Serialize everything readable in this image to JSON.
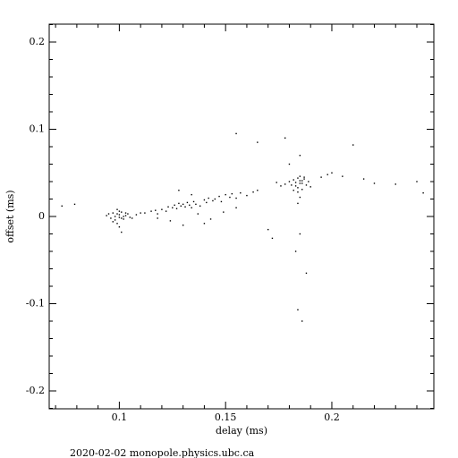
{
  "chart_data": {
    "type": "scatter",
    "xlabel": "delay (ms)",
    "ylabel": "offset (ms)",
    "footer": "2020-02-02  monopole.physics.ubc.ca",
    "color": "#000000",
    "xlim": [
      0.067,
      0.248
    ],
    "ylim": [
      -0.2205,
      0.2205
    ],
    "xticks": [
      0.1,
      0.15,
      0.2
    ],
    "yticks": [
      -0.2,
      -0.1,
      0,
      0.1,
      0.2
    ],
    "xminorticks": [
      0.07,
      0.08,
      0.09,
      0.11,
      0.12,
      0.13,
      0.14,
      0.16,
      0.17,
      0.18,
      0.19,
      0.21,
      0.22,
      0.23,
      0.24
    ],
    "yminorticks": [
      -0.22,
      -0.18,
      -0.16,
      -0.14,
      -0.12,
      -0.08,
      -0.06,
      -0.04,
      -0.02,
      0.02,
      0.04,
      0.06,
      0.08,
      0.12,
      0.14,
      0.16,
      0.18,
      0.22
    ],
    "x": [
      0.094,
      0.096,
      0.097,
      0.098,
      0.099,
      0.1,
      0.1,
      0.101,
      0.102,
      0.103,
      0.104,
      0.105,
      0.098,
      0.1,
      0.102,
      0.097,
      0.099,
      0.101,
      0.103,
      0.095,
      0.106,
      0.1,
      0.099,
      0.101,
      0.108,
      0.11,
      0.112,
      0.115,
      0.117,
      0.118,
      0.12,
      0.122,
      0.123,
      0.125,
      0.126,
      0.127,
      0.128,
      0.129,
      0.13,
      0.131,
      0.132,
      0.133,
      0.134,
      0.135,
      0.136,
      0.138,
      0.14,
      0.141,
      0.142,
      0.144,
      0.145,
      0.147,
      0.148,
      0.15,
      0.152,
      0.153,
      0.155,
      0.157,
      0.16,
      0.163,
      0.165,
      0.118,
      0.124,
      0.13,
      0.137,
      0.143,
      0.149,
      0.155,
      0.128,
      0.134,
      0.14,
      0.178,
      0.18,
      0.181,
      0.182,
      0.183,
      0.184,
      0.185,
      0.186,
      0.187,
      0.188,
      0.189,
      0.184,
      0.185,
      0.186,
      0.183,
      0.187,
      0.182,
      0.185,
      0.186,
      0.184,
      0.19,
      0.176,
      0.174,
      0.185,
      0.184,
      0.073,
      0.079,
      0.155,
      0.165,
      0.178,
      0.21,
      0.24,
      0.243,
      0.186,
      0.184,
      0.188,
      0.183,
      0.185,
      0.18,
      0.185,
      0.195,
      0.198,
      0.2,
      0.205,
      0.215,
      0.22,
      0.23,
      0.17,
      0.172
    ],
    "y": [
      0.001,
      -0.002,
      0.004,
      0,
      0.003,
      -0.001,
      0.002,
      0.005,
      -0.003,
      0.001,
      0.003,
      -0.001,
      -0.004,
      0.006,
      0,
      -0.006,
      -0.008,
      -0.002,
      0.004,
      0.003,
      -0.002,
      -0.012,
      0.008,
      -0.018,
      0.002,
      0.004,
      0.004,
      0.006,
      0.007,
      0.003,
      0.008,
      0.006,
      0.011,
      0.01,
      0.013,
      0.009,
      0.015,
      0.012,
      0.014,
      0.011,
      0.016,
      0.013,
      0.01,
      0.017,
      0.014,
      0.012,
      0.019,
      0.016,
      0.021,
      0.018,
      0.02,
      0.023,
      0.017,
      0.025,
      0.022,
      0.026,
      0.021,
      0.027,
      0.024,
      0.028,
      0.03,
      -0.002,
      -0.005,
      -0.01,
      0.003,
      -0.003,
      0.005,
      0.01,
      0.03,
      0.025,
      -0.008,
      0.037,
      0.04,
      0.036,
      0.042,
      0.039,
      0.044,
      0.041,
      0.038,
      0.043,
      0.036,
      0.04,
      0.033,
      0.046,
      0.031,
      0.035,
      0.045,
      0.03,
      0.038,
      0.041,
      0.028,
      0.034,
      0.035,
      0.039,
      0.022,
      0.015,
      0.012,
      0.014,
      0.095,
      0.085,
      0.09,
      0.082,
      0.04,
      0.027,
      -0.12,
      -0.107,
      -0.065,
      -0.04,
      -0.02,
      0.06,
      0.07,
      0.045,
      0.048,
      0.05,
      0.046,
      0.043,
      0.038,
      0.037,
      -0.015,
      -0.025
    ]
  }
}
